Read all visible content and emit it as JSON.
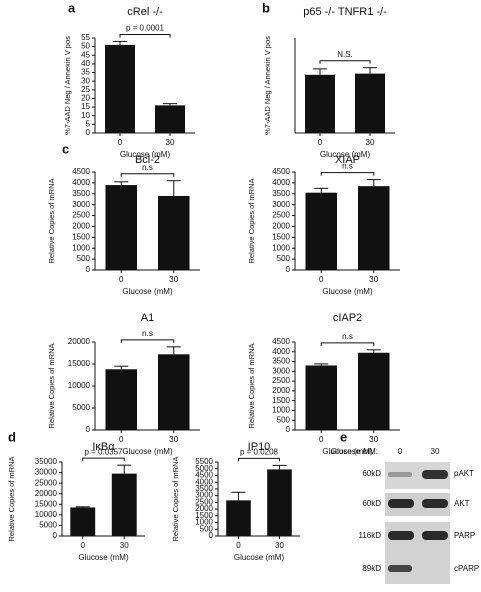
{
  "panel_labels": [
    "a",
    "b",
    "c",
    "d",
    "e"
  ],
  "chart_data": [
    {
      "type": "bar",
      "title": "cRel -/-",
      "ylabel": "%7-AAD Neg / Annexin V pos",
      "xlabel": "Glucose (mM)",
      "categories": [
        "0",
        "30"
      ],
      "values": [
        51,
        16
      ],
      "errors": [
        2,
        1
      ],
      "color": "#111111",
      "ylim": [
        0,
        55
      ],
      "yticks": [
        0,
        5,
        10,
        15,
        20,
        25,
        30,
        35,
        40,
        45,
        50,
        55
      ],
      "annotation": "p = 0.0001"
    },
    {
      "type": "bar",
      "title": "p65 -/- TNFR1 -/-",
      "ylabel": "%7-AAD Neg / Annexin V pos",
      "xlabel": "Glucose (mM)",
      "categories": [
        "0",
        "30"
      ],
      "values": [
        24.5,
        25
      ],
      "errors": [
        2.5,
        2.5
      ],
      "color": "#111111",
      "ylim": [
        0,
        40
      ],
      "annotation": "N.S."
    },
    {
      "type": "bar",
      "title": "Bcl-2",
      "ylabel": "Relative Copies of mRNA",
      "xlabel": "Glucose (mM)",
      "categories": [
        "0",
        "30"
      ],
      "values": [
        3900,
        3400
      ],
      "errors": [
        150,
        700
      ],
      "color": "#111111",
      "ylim": [
        0,
        4500
      ],
      "yticks": [
        0,
        500,
        1000,
        1500,
        2000,
        2500,
        3000,
        3500,
        4000,
        4500
      ],
      "annotation": "n.s"
    },
    {
      "type": "bar",
      "title": "XIAP",
      "ylabel": "Relative Copies of mRNA",
      "xlabel": "Glucose (mM)",
      "categories": [
        "0",
        "30"
      ],
      "values": [
        3550,
        3850
      ],
      "errors": [
        200,
        300
      ],
      "color": "#111111",
      "ylim": [
        0,
        4500
      ],
      "yticks": [
        0,
        500,
        1000,
        1500,
        2000,
        2500,
        3000,
        3500,
        4000,
        4500
      ],
      "annotation": "n.s"
    },
    {
      "type": "bar",
      "title": "A1",
      "ylabel": "Relative Copies of mRNA",
      "xlabel": "Glucose (mM)",
      "categories": [
        "0",
        "30"
      ],
      "values": [
        13800,
        17200
      ],
      "errors": [
        700,
        1700
      ],
      "color": "#111111",
      "ylim": [
        0,
        20000
      ],
      "yticks": [
        0,
        5000,
        10000,
        15000,
        20000
      ],
      "annotation": "n.s"
    },
    {
      "type": "bar",
      "title": "cIAP2",
      "ylabel": "Relative Copies of mRNA",
      "xlabel": "Glucose (mM)",
      "categories": [
        "0",
        "30"
      ],
      "values": [
        3300,
        3950
      ],
      "errors": [
        80,
        150
      ],
      "color": "#111111",
      "ylim": [
        0,
        4500
      ],
      "yticks": [
        0,
        500,
        1000,
        1500,
        2000,
        2500,
        3000,
        3500,
        4000,
        4500
      ],
      "annotation": "n.s"
    },
    {
      "type": "bar",
      "title": "IκBα",
      "ylabel": "Relative Copies of mRNA",
      "xlabel": "Glucose (mM)",
      "categories": [
        "0",
        "30"
      ],
      "values": [
        13500,
        29500
      ],
      "errors": [
        300,
        4000
      ],
      "color": "#111111",
      "ylim": [
        0,
        35000
      ],
      "yticks": [
        0,
        5000,
        10000,
        15000,
        20000,
        25000,
        30000,
        35000
      ],
      "annotation": "p = 0.0357"
    },
    {
      "type": "bar",
      "title": "IP10",
      "ylabel": "Relative Copies of mRNA",
      "xlabel": "Glucose (mM)",
      "categories": [
        "0",
        "30"
      ],
      "values": [
        2650,
        4950
      ],
      "errors": [
        600,
        300
      ],
      "color": "#111111",
      "ylim": [
        0,
        5500
      ],
      "yticks": [
        0,
        500,
        1000,
        1500,
        2000,
        2500,
        3000,
        3500,
        4000,
        4500,
        5000,
        5500
      ],
      "annotation": "p = 0.0208"
    }
  ],
  "blot": {
    "header": "Glucose mM:",
    "lanes": [
      "0",
      "30"
    ],
    "rows": [
      {
        "size": "60kD",
        "protein": "pAKT"
      },
      {
        "size": "60kD",
        "protein": "AKT"
      },
      {
        "size": "116kD",
        "protein": "PARP"
      },
      {
        "size": "89kD",
        "protein": "cPARP"
      }
    ]
  }
}
